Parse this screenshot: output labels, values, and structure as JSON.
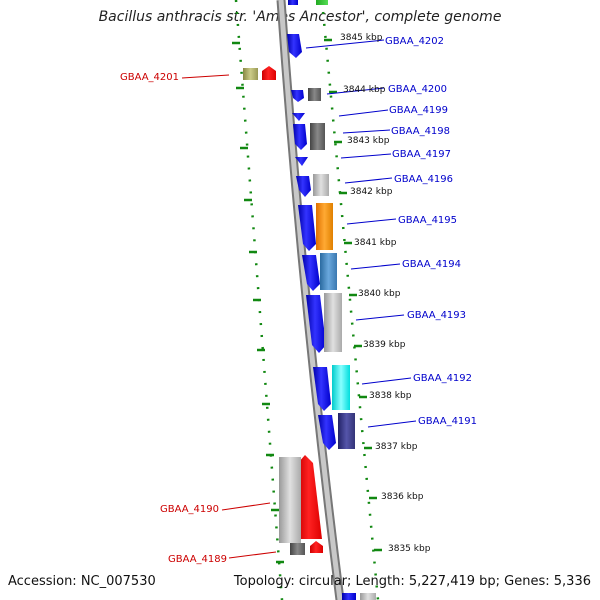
{
  "title": "Bacillus anthracis str. 'Ames Ancestor', complete genome",
  "accession": "Accession: NC_007530",
  "summary": "Topology: circular; Length: 5,227,419 bp; Genes: 5,336",
  "colors": {
    "label_blue": "#0000cc",
    "label_red": "#cc0000",
    "tick_green": "#008000",
    "backbone_gray": "#999999",
    "gene_blue": "#0000ee",
    "gene_red": "#ff0000"
  },
  "kbp_labels": [
    "3845 kbp",
    "3844 kbp",
    "3843 kbp",
    "3842 kbp",
    "3841 kbp",
    "3840 kbp",
    "3839 kbp",
    "3838 kbp",
    "3837 kbp",
    "3836 kbp",
    "3835 kbp"
  ],
  "gene_labels_right": [
    "GBAA_4202",
    "GBAA_4200",
    "GBAA_4199",
    "GBAA_4198",
    "GBAA_4197",
    "GBAA_4196",
    "GBAA_4195",
    "GBAA_4194",
    "GBAA_4193",
    "GBAA_4192",
    "GBAA_4191"
  ],
  "gene_labels_left": [
    "GBAA_4201",
    "GBAA_4190",
    "GBAA_4189"
  ]
}
